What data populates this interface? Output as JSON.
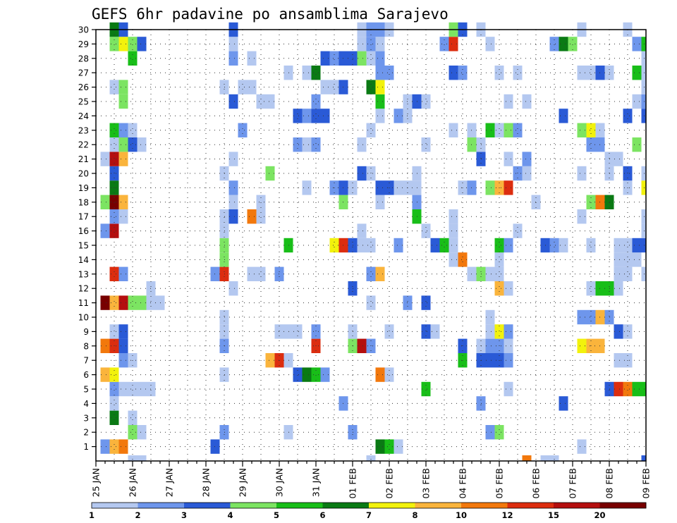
{
  "chart_data": {
    "type": "heatmap",
    "title": "GEFS 6hr padavine po ansamblima Sarajevo",
    "y_ticks": [
      "1",
      "2",
      "3",
      "4",
      "5",
      "6",
      "7",
      "8",
      "9",
      "10",
      "11",
      "12",
      "13",
      "14",
      "15",
      "16",
      "17",
      "18",
      "19",
      "20",
      "21",
      "22",
      "23",
      "24",
      "25",
      "26",
      "27",
      "28",
      "29",
      "30"
    ],
    "x_ticks": [
      "25 JAN",
      "26 JAN",
      "27 JAN",
      "28 JAN",
      "29 JAN",
      "30 JAN",
      "31 JAN",
      "01 FEB",
      "02 FEB",
      "03 FEB",
      "04 FEB",
      "05 FEB",
      "06 FEB",
      "07 FEB",
      "08 FEB",
      "09 FEB"
    ],
    "y_range": [
      0,
      30
    ],
    "time_steps": 61,
    "color_levels": [
      "1",
      "2",
      "3",
      "4",
      "5",
      "6",
      "7",
      "8",
      "10",
      "12",
      "15",
      "20"
    ],
    "colors": [
      "#b4c8f0",
      "#6e96ec",
      "#2a5ad6",
      "#7ce462",
      "#18be18",
      "#0a7a14",
      "#f2f20c",
      "#fab43c",
      "#f2780c",
      "#dc2d0f",
      "#b40f0f",
      "#780000"
    ],
    "cells": [
      [
        1,
        1,
        2
      ],
      [
        1,
        2,
        8
      ],
      [
        1,
        3,
        9
      ],
      [
        1,
        13,
        3
      ],
      [
        1,
        31,
        6
      ],
      [
        1,
        32,
        5
      ],
      [
        1,
        33,
        1
      ],
      [
        1,
        53,
        1
      ],
      [
        2,
        4,
        4
      ],
      [
        2,
        5,
        1
      ],
      [
        2,
        14,
        2
      ],
      [
        2,
        21,
        1
      ],
      [
        2,
        28,
        2
      ],
      [
        2,
        43,
        2
      ],
      [
        2,
        44,
        4
      ],
      [
        3,
        2,
        6
      ],
      [
        3,
        4,
        1
      ],
      [
        4,
        2,
        1
      ],
      [
        4,
        27,
        2
      ],
      [
        4,
        42,
        2
      ],
      [
        4,
        51,
        3
      ],
      [
        5,
        2,
        2
      ],
      [
        5,
        3,
        1
      ],
      [
        5,
        4,
        1
      ],
      [
        5,
        5,
        1
      ],
      [
        5,
        6,
        1
      ],
      [
        5,
        36,
        5
      ],
      [
        5,
        45,
        1
      ],
      [
        5,
        56,
        3
      ],
      [
        5,
        57,
        10
      ],
      [
        5,
        58,
        9
      ],
      [
        5,
        59,
        5
      ],
      [
        5,
        60,
        5
      ],
      [
        6,
        1,
        8
      ],
      [
        6,
        2,
        7
      ],
      [
        6,
        14,
        1
      ],
      [
        6,
        22,
        3
      ],
      [
        6,
        23,
        6
      ],
      [
        6,
        24,
        5
      ],
      [
        6,
        25,
        2
      ],
      [
        6,
        31,
        9
      ],
      [
        6,
        32,
        1
      ],
      [
        7,
        3,
        2
      ],
      [
        7,
        4,
        1
      ],
      [
        7,
        19,
        8
      ],
      [
        7,
        20,
        10
      ],
      [
        7,
        21,
        1
      ],
      [
        7,
        40,
        5
      ],
      [
        7,
        42,
        3
      ],
      [
        7,
        43,
        3
      ],
      [
        7,
        44,
        3
      ],
      [
        7,
        45,
        2
      ],
      [
        7,
        57,
        1
      ],
      [
        7,
        58,
        1
      ],
      [
        8,
        1,
        9
      ],
      [
        8,
        2,
        10
      ],
      [
        8,
        3,
        3
      ],
      [
        8,
        14,
        2
      ],
      [
        8,
        24,
        10
      ],
      [
        8,
        28,
        4
      ],
      [
        8,
        29,
        11
      ],
      [
        8,
        30,
        2
      ],
      [
        8,
        40,
        3
      ],
      [
        8,
        42,
        1
      ],
      [
        8,
        43,
        2
      ],
      [
        8,
        44,
        2
      ],
      [
        8,
        45,
        1
      ],
      [
        8,
        53,
        7
      ],
      [
        8,
        54,
        8
      ],
      [
        8,
        55,
        8
      ],
      [
        9,
        2,
        1
      ],
      [
        9,
        3,
        3
      ],
      [
        9,
        14,
        1
      ],
      [
        9,
        20,
        1
      ],
      [
        9,
        21,
        1
      ],
      [
        9,
        22,
        1
      ],
      [
        9,
        24,
        2
      ],
      [
        9,
        28,
        1
      ],
      [
        9,
        32,
        1
      ],
      [
        9,
        36,
        3
      ],
      [
        9,
        37,
        1
      ],
      [
        9,
        43,
        1
      ],
      [
        9,
        44,
        7
      ],
      [
        9,
        45,
        2
      ],
      [
        9,
        57,
        3
      ],
      [
        9,
        58,
        1
      ],
      [
        10,
        14,
        1
      ],
      [
        10,
        43,
        1
      ],
      [
        10,
        53,
        2
      ],
      [
        10,
        54,
        2
      ],
      [
        10,
        55,
        8
      ],
      [
        10,
        56,
        2
      ],
      [
        11,
        1,
        12
      ],
      [
        11,
        2,
        8
      ],
      [
        11,
        3,
        11
      ],
      [
        11,
        4,
        4
      ],
      [
        11,
        5,
        4
      ],
      [
        11,
        6,
        1
      ],
      [
        11,
        7,
        1
      ],
      [
        11,
        30,
        1
      ],
      [
        11,
        34,
        2
      ],
      [
        11,
        36,
        3
      ],
      [
        12,
        6,
        1
      ],
      [
        12,
        15,
        1
      ],
      [
        12,
        28,
        3
      ],
      [
        12,
        44,
        8
      ],
      [
        12,
        45,
        1
      ],
      [
        12,
        54,
        1
      ],
      [
        12,
        55,
        5
      ],
      [
        12,
        56,
        5
      ],
      [
        12,
        57,
        1
      ],
      [
        13,
        2,
        10
      ],
      [
        13,
        3,
        2
      ],
      [
        13,
        13,
        2
      ],
      [
        13,
        14,
        10
      ],
      [
        13,
        17,
        1
      ],
      [
        13,
        18,
        1
      ],
      [
        13,
        20,
        2
      ],
      [
        13,
        30,
        2
      ],
      [
        13,
        31,
        8
      ],
      [
        13,
        41,
        1
      ],
      [
        13,
        42,
        4
      ],
      [
        13,
        43,
        1
      ],
      [
        13,
        44,
        1
      ],
      [
        13,
        57,
        1
      ],
      [
        13,
        58,
        1
      ],
      [
        13,
        60,
        1
      ],
      [
        14,
        14,
        4
      ],
      [
        14,
        39,
        1
      ],
      [
        14,
        40,
        9
      ],
      [
        14,
        44,
        1
      ],
      [
        14,
        57,
        1
      ],
      [
        14,
        58,
        1
      ],
      [
        14,
        59,
        1
      ],
      [
        15,
        14,
        4
      ],
      [
        15,
        21,
        5
      ],
      [
        15,
        26,
        7
      ],
      [
        15,
        27,
        10
      ],
      [
        15,
        28,
        3
      ],
      [
        15,
        29,
        1
      ],
      [
        15,
        30,
        1
      ],
      [
        15,
        33,
        2
      ],
      [
        15,
        37,
        3
      ],
      [
        15,
        38,
        5
      ],
      [
        15,
        39,
        1
      ],
      [
        15,
        44,
        5
      ],
      [
        15,
        45,
        2
      ],
      [
        15,
        49,
        3
      ],
      [
        15,
        50,
        2
      ],
      [
        15,
        51,
        1
      ],
      [
        15,
        54,
        1
      ],
      [
        15,
        57,
        1
      ],
      [
        15,
        58,
        1
      ],
      [
        15,
        59,
        3
      ],
      [
        15,
        60,
        3
      ],
      [
        16,
        1,
        2
      ],
      [
        16,
        2,
        11
      ],
      [
        16,
        14,
        1
      ],
      [
        16,
        29,
        1
      ],
      [
        16,
        36,
        1
      ],
      [
        16,
        39,
        1
      ],
      [
        16,
        46,
        1
      ],
      [
        16,
        60,
        1
      ],
      [
        17,
        2,
        2
      ],
      [
        17,
        3,
        1
      ],
      [
        17,
        14,
        1
      ],
      [
        17,
        15,
        3
      ],
      [
        17,
        17,
        9
      ],
      [
        17,
        18,
        1
      ],
      [
        17,
        35,
        5
      ],
      [
        17,
        39,
        1
      ],
      [
        17,
        53,
        1
      ],
      [
        17,
        60,
        1
      ],
      [
        18,
        1,
        4
      ],
      [
        18,
        2,
        12
      ],
      [
        18,
        3,
        8
      ],
      [
        18,
        15,
        1
      ],
      [
        18,
        18,
        1
      ],
      [
        18,
        27,
        4
      ],
      [
        18,
        31,
        1
      ],
      [
        18,
        35,
        2
      ],
      [
        18,
        48,
        1
      ],
      [
        18,
        54,
        4
      ],
      [
        18,
        55,
        9
      ],
      [
        18,
        56,
        6
      ],
      [
        19,
        2,
        6
      ],
      [
        19,
        15,
        2
      ],
      [
        19,
        23,
        1
      ],
      [
        19,
        26,
        2
      ],
      [
        19,
        27,
        3
      ],
      [
        19,
        28,
        1
      ],
      [
        19,
        31,
        3
      ],
      [
        19,
        32,
        3
      ],
      [
        19,
        33,
        1
      ],
      [
        19,
        34,
        1
      ],
      [
        19,
        35,
        1
      ],
      [
        19,
        40,
        1
      ],
      [
        19,
        41,
        2
      ],
      [
        19,
        43,
        4
      ],
      [
        19,
        44,
        8
      ],
      [
        19,
        45,
        10
      ],
      [
        19,
        58,
        1
      ],
      [
        19,
        60,
        7
      ],
      [
        20,
        2,
        3
      ],
      [
        20,
        14,
        1
      ],
      [
        20,
        19,
        4
      ],
      [
        20,
        29,
        3
      ],
      [
        20,
        30,
        1
      ],
      [
        20,
        35,
        1
      ],
      [
        20,
        46,
        2
      ],
      [
        20,
        47,
        1
      ],
      [
        20,
        53,
        1
      ],
      [
        20,
        56,
        1
      ],
      [
        20,
        58,
        3
      ],
      [
        20,
        60,
        1
      ],
      [
        21,
        1,
        1
      ],
      [
        21,
        2,
        11
      ],
      [
        21,
        3,
        8
      ],
      [
        21,
        15,
        1
      ],
      [
        21,
        42,
        3
      ],
      [
        21,
        45,
        1
      ],
      [
        21,
        47,
        2
      ],
      [
        21,
        56,
        1
      ],
      [
        21,
        57,
        1
      ],
      [
        22,
        2,
        1
      ],
      [
        22,
        3,
        4
      ],
      [
        22,
        4,
        3
      ],
      [
        22,
        5,
        1
      ],
      [
        22,
        22,
        2
      ],
      [
        22,
        23,
        1
      ],
      [
        22,
        24,
        2
      ],
      [
        22,
        29,
        1
      ],
      [
        22,
        36,
        1
      ],
      [
        22,
        41,
        4
      ],
      [
        22,
        42,
        1
      ],
      [
        22,
        54,
        2
      ],
      [
        22,
        55,
        2
      ],
      [
        22,
        59,
        4
      ],
      [
        23,
        2,
        5
      ],
      [
        23,
        3,
        2
      ],
      [
        23,
        4,
        1
      ],
      [
        23,
        16,
        2
      ],
      [
        23,
        30,
        1
      ],
      [
        23,
        39,
        1
      ],
      [
        23,
        41,
        1
      ],
      [
        23,
        43,
        5
      ],
      [
        23,
        44,
        1
      ],
      [
        23,
        45,
        4
      ],
      [
        23,
        46,
        2
      ],
      [
        23,
        53,
        4
      ],
      [
        23,
        54,
        7
      ],
      [
        23,
        55,
        1
      ],
      [
        24,
        22,
        3
      ],
      [
        24,
        23,
        2
      ],
      [
        24,
        24,
        3
      ],
      [
        24,
        25,
        3
      ],
      [
        24,
        31,
        1
      ],
      [
        24,
        33,
        2
      ],
      [
        24,
        34,
        1
      ],
      [
        24,
        51,
        3
      ],
      [
        24,
        58,
        3
      ],
      [
        24,
        60,
        3
      ],
      [
        25,
        3,
        4
      ],
      [
        25,
        15,
        3
      ],
      [
        25,
        18,
        1
      ],
      [
        25,
        19,
        1
      ],
      [
        25,
        24,
        2
      ],
      [
        25,
        31,
        5
      ],
      [
        25,
        34,
        1
      ],
      [
        25,
        35,
        3
      ],
      [
        25,
        36,
        1
      ],
      [
        25,
        45,
        1
      ],
      [
        25,
        47,
        1
      ],
      [
        25,
        59,
        1
      ],
      [
        25,
        60,
        2
      ],
      [
        26,
        2,
        1
      ],
      [
        26,
        3,
        4
      ],
      [
        26,
        14,
        1
      ],
      [
        26,
        16,
        1
      ],
      [
        26,
        17,
        1
      ],
      [
        26,
        25,
        1
      ],
      [
        26,
        26,
        1
      ],
      [
        26,
        27,
        3
      ],
      [
        26,
        30,
        6
      ],
      [
        26,
        31,
        7
      ],
      [
        26,
        60,
        1
      ],
      [
        27,
        21,
        1
      ],
      [
        27,
        23,
        1
      ],
      [
        27,
        24,
        6
      ],
      [
        27,
        31,
        2
      ],
      [
        27,
        32,
        2
      ],
      [
        27,
        39,
        3
      ],
      [
        27,
        40,
        2
      ],
      [
        27,
        44,
        1
      ],
      [
        27,
        46,
        1
      ],
      [
        27,
        53,
        1
      ],
      [
        27,
        54,
        1
      ],
      [
        27,
        55,
        3
      ],
      [
        27,
        56,
        1
      ],
      [
        27,
        59,
        5
      ],
      [
        27,
        60,
        1
      ],
      [
        28,
        4,
        5
      ],
      [
        28,
        15,
        2
      ],
      [
        28,
        17,
        1
      ],
      [
        28,
        25,
        3
      ],
      [
        28,
        26,
        2
      ],
      [
        28,
        27,
        3
      ],
      [
        28,
        28,
        3
      ],
      [
        28,
        29,
        4
      ],
      [
        28,
        30,
        1
      ],
      [
        28,
        31,
        2
      ],
      [
        28,
        60,
        1
      ],
      [
        29,
        2,
        4
      ],
      [
        29,
        3,
        7
      ],
      [
        29,
        4,
        4
      ],
      [
        29,
        5,
        3
      ],
      [
        29,
        15,
        1
      ],
      [
        29,
        29,
        1
      ],
      [
        29,
        30,
        2
      ],
      [
        29,
        31,
        1
      ],
      [
        29,
        38,
        2
      ],
      [
        29,
        39,
        10
      ],
      [
        29,
        43,
        1
      ],
      [
        29,
        50,
        2
      ],
      [
        29,
        51,
        6
      ],
      [
        29,
        52,
        4
      ],
      [
        29,
        59,
        2
      ],
      [
        29,
        60,
        5
      ],
      [
        30,
        2,
        6
      ],
      [
        30,
        3,
        3
      ],
      [
        30,
        15,
        3
      ],
      [
        30,
        29,
        1
      ],
      [
        30,
        30,
        2
      ],
      [
        30,
        31,
        2
      ],
      [
        30,
        32,
        1
      ],
      [
        30,
        39,
        4
      ],
      [
        30,
        40,
        3
      ],
      [
        30,
        42,
        1
      ],
      [
        30,
        53,
        1
      ],
      [
        30,
        58,
        1
      ],
      [
        0,
        4,
        1
      ],
      [
        0,
        5,
        1
      ],
      [
        0,
        30,
        1
      ],
      [
        0,
        47,
        9
      ],
      [
        0,
        49,
        1
      ],
      [
        0,
        50,
        1
      ],
      [
        0,
        60,
        3
      ]
    ]
  }
}
